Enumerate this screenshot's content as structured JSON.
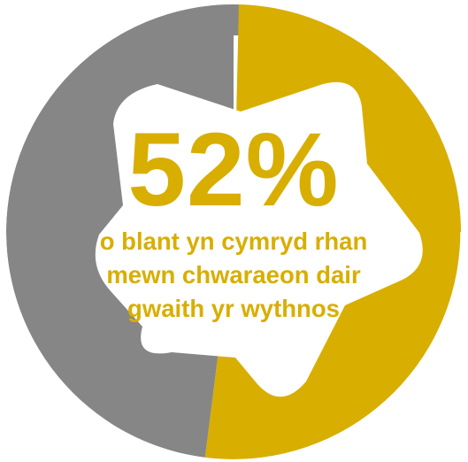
{
  "chart_data": {
    "type": "pie",
    "title": "",
    "slices": [
      {
        "label": "",
        "value": 52,
        "color": "#D8AE00"
      },
      {
        "label": "",
        "value": 48,
        "color": "#868686"
      }
    ]
  },
  "headline": {
    "value_text": "52%",
    "caption_lines": [
      "o blant yn cymryd rhan",
      "mewn chwaraeon dair",
      "gwaith yr wythnos"
    ]
  },
  "colors": {
    "highlight": "#D8AE00",
    "remainder": "#868686",
    "background": "#FFFFFF"
  },
  "icon": "football-pentagon-icon"
}
